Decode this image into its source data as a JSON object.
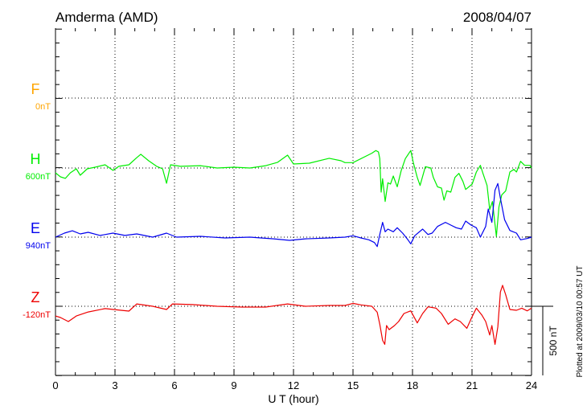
{
  "chart_data": {
    "type": "line",
    "title": "Amderma (AMD)",
    "date": "2008/04/07",
    "xlabel": "U T (hour)",
    "xlim": [
      0,
      24
    ],
    "xticks": [
      "0",
      "3",
      "6",
      "9",
      "12",
      "15",
      "18",
      "21",
      "24"
    ],
    "grid": true,
    "scale_bar": "500 nT",
    "footer": "Plotted at 2009/03/10 00:57 UT",
    "series": [
      {
        "name": "F",
        "base_label": "0nT",
        "color": "#ffa500",
        "points": []
      },
      {
        "name": "H",
        "base_label": "600nT",
        "color": "#00ee00",
        "points": [
          [
            0,
            -35
          ],
          [
            0.25,
            -64
          ],
          [
            0.5,
            -75
          ],
          [
            0.75,
            -35
          ],
          [
            1.05,
            -6
          ],
          [
            1.25,
            -52
          ],
          [
            1.6,
            -6
          ],
          [
            2,
            6
          ],
          [
            2.5,
            23
          ],
          [
            2.9,
            -17
          ],
          [
            3.2,
            12
          ],
          [
            3.7,
            23
          ],
          [
            4.1,
            75
          ],
          [
            4.3,
            99
          ],
          [
            4.7,
            52
          ],
          [
            5.1,
            12
          ],
          [
            5.4,
            -6
          ],
          [
            5.6,
            -110
          ],
          [
            5.8,
            23
          ],
          [
            6.3,
            12
          ],
          [
            7.3,
            17
          ],
          [
            8.15,
            0
          ],
          [
            9,
            6
          ],
          [
            9.8,
            0
          ],
          [
            10.6,
            17
          ],
          [
            11.2,
            41
          ],
          [
            11.7,
            93
          ],
          [
            12,
            29
          ],
          [
            12.8,
            35
          ],
          [
            13.8,
            70
          ],
          [
            14.4,
            52
          ],
          [
            14.6,
            39
          ],
          [
            15,
            39
          ],
          [
            15.95,
            107
          ],
          [
            16.15,
            126
          ],
          [
            16.28,
            116
          ],
          [
            16.35,
            68
          ],
          [
            16.42,
            -174
          ],
          [
            16.49,
            -77
          ],
          [
            16.62,
            -242
          ],
          [
            16.76,
            -107
          ],
          [
            16.89,
            -116
          ],
          [
            17.03,
            -58
          ],
          [
            17.23,
            -136
          ],
          [
            17.43,
            -19
          ],
          [
            17.64,
            68
          ],
          [
            17.91,
            126
          ],
          [
            18.04,
            39
          ],
          [
            18.24,
            -68
          ],
          [
            18.38,
            -126
          ],
          [
            18.65,
            10
          ],
          [
            18.92,
            0
          ],
          [
            19.05,
            -68
          ],
          [
            19.26,
            -136
          ],
          [
            19.46,
            -145
          ],
          [
            19.59,
            -232
          ],
          [
            19.73,
            -165
          ],
          [
            19.93,
            -174
          ],
          [
            20.14,
            -68
          ],
          [
            20.34,
            -39
          ],
          [
            20.54,
            -97
          ],
          [
            20.68,
            -155
          ],
          [
            21.01,
            -116
          ],
          [
            21.22,
            -29
          ],
          [
            21.42,
            19
          ],
          [
            21.55,
            -39
          ],
          [
            21.76,
            -126
          ],
          [
            21.89,
            -300
          ],
          [
            22.03,
            -242
          ],
          [
            22.23,
            -494
          ],
          [
            22.36,
            -281
          ],
          [
            22.5,
            -194
          ],
          [
            22.7,
            -165
          ],
          [
            22.91,
            -29
          ],
          [
            23.11,
            -10
          ],
          [
            23.24,
            -29
          ],
          [
            23.45,
            48
          ],
          [
            23.65,
            19
          ],
          [
            23.92,
            19
          ],
          [
            24,
            0
          ]
        ]
      },
      {
        "name": "E",
        "base_label": "940nT",
        "color": "#0000ee",
        "points": [
          [
            0,
            0
          ],
          [
            0.45,
            29
          ],
          [
            0.85,
            46
          ],
          [
            1.25,
            23
          ],
          [
            1.65,
            35
          ],
          [
            2.25,
            12
          ],
          [
            2.9,
            29
          ],
          [
            3.5,
            12
          ],
          [
            4.1,
            23
          ],
          [
            4.9,
            0
          ],
          [
            5.6,
            29
          ],
          [
            6.1,
            0
          ],
          [
            7.3,
            6
          ],
          [
            8.55,
            -6
          ],
          [
            9.8,
            0
          ],
          [
            11,
            -12
          ],
          [
            11.8,
            -23
          ],
          [
            12.6,
            -12
          ],
          [
            13.8,
            -6
          ],
          [
            14.6,
            0
          ],
          [
            15,
            10
          ],
          [
            15.4,
            -6
          ],
          [
            15.8,
            -19
          ],
          [
            16.08,
            -39
          ],
          [
            16.22,
            -68
          ],
          [
            16.35,
            19
          ],
          [
            16.49,
            107
          ],
          [
            16.62,
            39
          ],
          [
            16.76,
            58
          ],
          [
            17.03,
            39
          ],
          [
            17.23,
            68
          ],
          [
            17.5,
            29
          ],
          [
            17.77,
            -19
          ],
          [
            17.91,
            -48
          ],
          [
            18.11,
            10
          ],
          [
            18.51,
            58
          ],
          [
            18.78,
            19
          ],
          [
            18.99,
            29
          ],
          [
            19.26,
            77
          ],
          [
            19.66,
            107
          ],
          [
            19.93,
            87
          ],
          [
            20.2,
            68
          ],
          [
            20.47,
            58
          ],
          [
            20.68,
            116
          ],
          [
            20.95,
            87
          ],
          [
            21.22,
            68
          ],
          [
            21.42,
            0
          ],
          [
            21.69,
            77
          ],
          [
            21.82,
            203
          ],
          [
            22,
            107
          ],
          [
            22.16,
            339
          ],
          [
            22.3,
            387
          ],
          [
            22.43,
            281
          ],
          [
            22.64,
            126
          ],
          [
            22.91,
            48
          ],
          [
            23.24,
            29
          ],
          [
            23.45,
            -19
          ],
          [
            23.78,
            -10
          ],
          [
            24,
            0
          ]
        ]
      },
      {
        "name": "Z",
        "base_label": "-120nT",
        "color": "#ee0000",
        "points": [
          [
            0,
            -70
          ],
          [
            0.25,
            -81
          ],
          [
            0.65,
            -110
          ],
          [
            1.05,
            -70
          ],
          [
            1.65,
            -41
          ],
          [
            2.5,
            -17
          ],
          [
            3.3,
            -29
          ],
          [
            3.7,
            -35
          ],
          [
            4.1,
            17
          ],
          [
            4.9,
            0
          ],
          [
            5.6,
            -23
          ],
          [
            5.9,
            17
          ],
          [
            6.9,
            12
          ],
          [
            8.15,
            0
          ],
          [
            9.4,
            -6
          ],
          [
            10.6,
            -6
          ],
          [
            11.7,
            17
          ],
          [
            12.6,
            0
          ],
          [
            13.8,
            6
          ],
          [
            14.6,
            6
          ],
          [
            15,
            21
          ],
          [
            15.4,
            10
          ],
          [
            15.95,
            0
          ],
          [
            16.22,
            -43
          ],
          [
            16.35,
            -130
          ],
          [
            16.49,
            -246
          ],
          [
            16.6,
            -275
          ],
          [
            16.69,
            -139
          ],
          [
            16.82,
            -169
          ],
          [
            17.09,
            -139
          ],
          [
            17.3,
            -110
          ],
          [
            17.57,
            -52
          ],
          [
            17.91,
            -33
          ],
          [
            18.24,
            -120
          ],
          [
            18.51,
            -52
          ],
          [
            18.78,
            -4
          ],
          [
            19.19,
            -14
          ],
          [
            19.46,
            -52
          ],
          [
            19.8,
            -130
          ],
          [
            20.14,
            -91
          ],
          [
            20.41,
            -110
          ],
          [
            20.74,
            -159
          ],
          [
            20.95,
            -91
          ],
          [
            21.22,
            -14
          ],
          [
            21.49,
            -62
          ],
          [
            21.69,
            -110
          ],
          [
            21.89,
            -207
          ],
          [
            22,
            -139
          ],
          [
            22.16,
            -275
          ],
          [
            22.3,
            -149
          ],
          [
            22.43,
            103
          ],
          [
            22.54,
            151
          ],
          [
            22.7,
            83
          ],
          [
            22.91,
            -23
          ],
          [
            23.24,
            -29
          ],
          [
            23.51,
            -14
          ],
          [
            23.78,
            -33
          ],
          [
            24,
            -14
          ]
        ]
      }
    ]
  }
}
